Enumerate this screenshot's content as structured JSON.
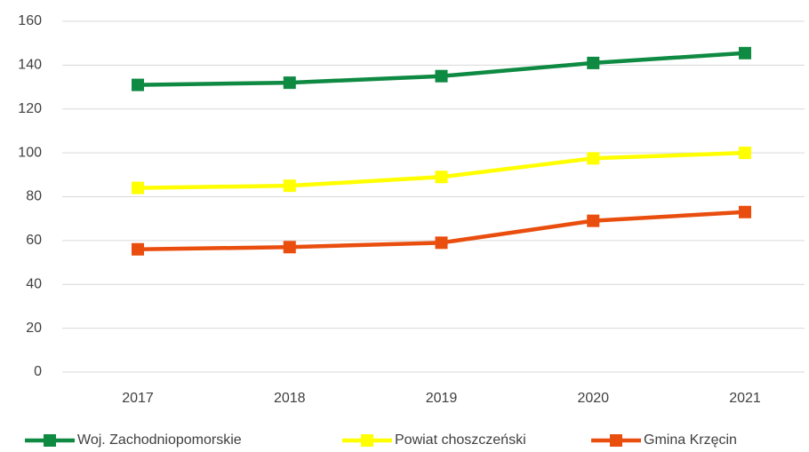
{
  "chart_data": {
    "type": "line",
    "categories": [
      "2017",
      "2018",
      "2019",
      "2020",
      "2021"
    ],
    "series": [
      {
        "name": "Woj. Zachodniopomorskie",
        "color": "#0e8a43",
        "values": [
          131,
          132,
          135,
          141,
          145.5
        ]
      },
      {
        "name": "Powiat choszczeński",
        "color": "#ffff00",
        "values": [
          84,
          85,
          89,
          97.5,
          100
        ]
      },
      {
        "name": "Gmina Krzęcin",
        "color": "#e94e0f",
        "values": [
          56,
          57,
          59,
          69,
          73
        ]
      }
    ],
    "ylim": [
      0,
      160
    ],
    "yticks": [
      0,
      20,
      40,
      60,
      80,
      100,
      120,
      140,
      160
    ],
    "grid": true,
    "legend": "bottom"
  }
}
